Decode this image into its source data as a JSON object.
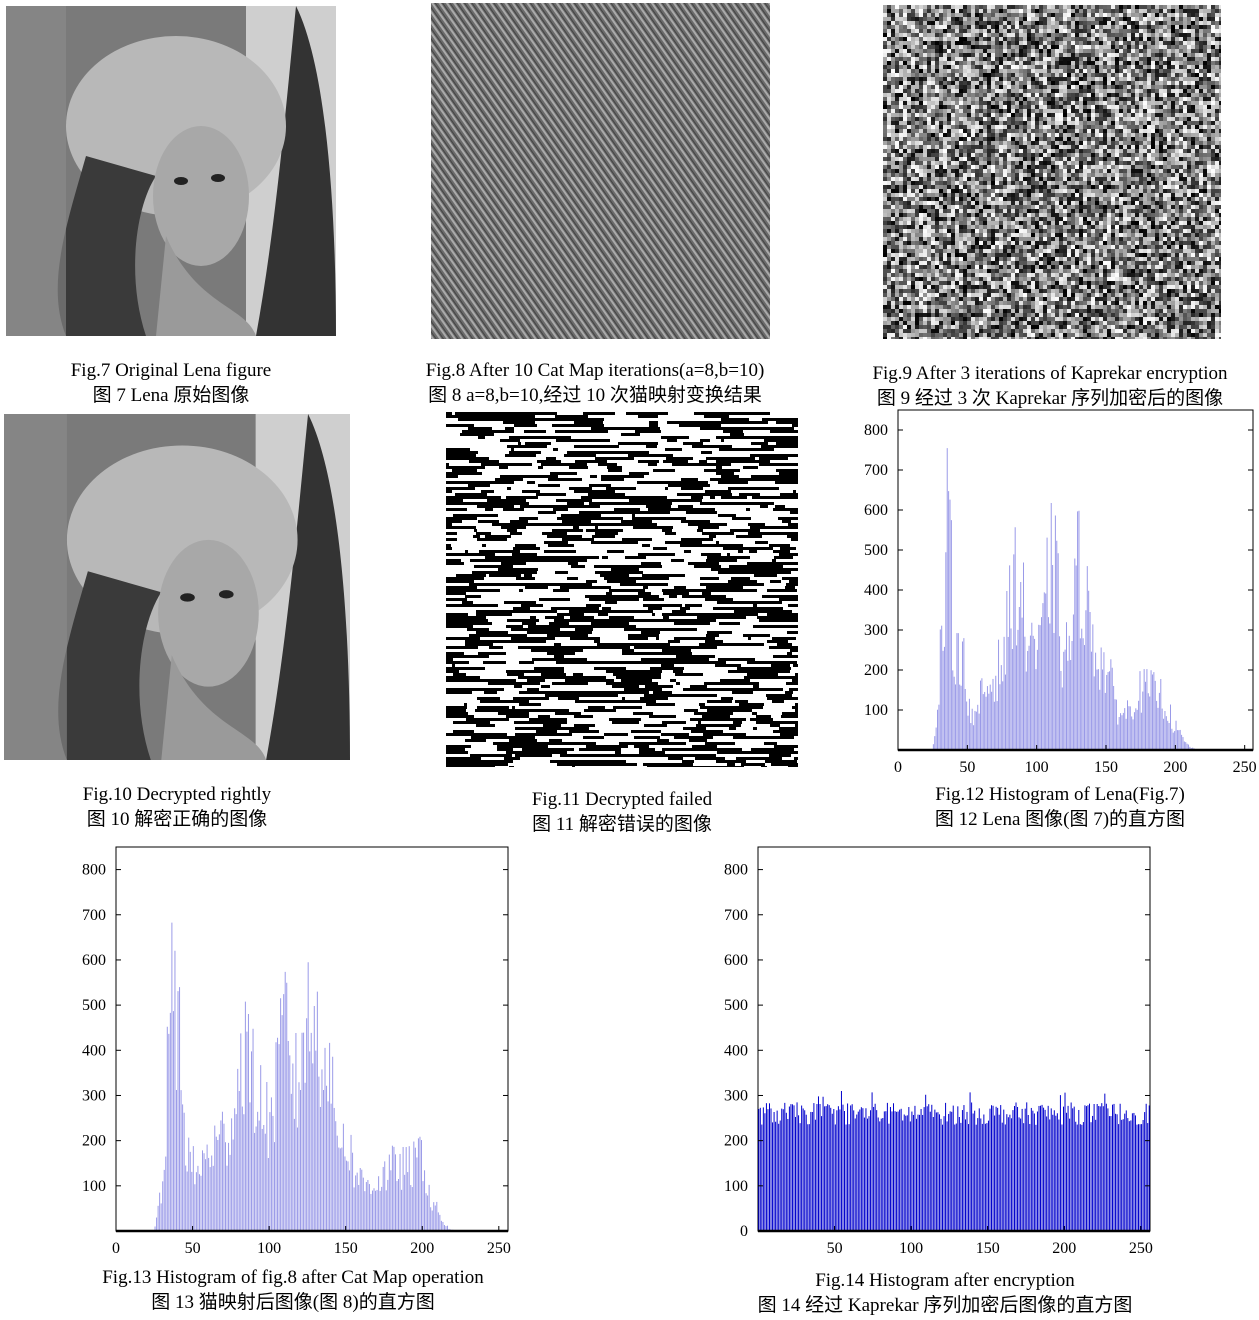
{
  "figures": {
    "fig7": {
      "caption_en": "Fig.7 Original Lena figure",
      "caption_zh": "图 7 Lena 原始图像"
    },
    "fig8": {
      "caption_en": "Fig.8 After 10 Cat Map iterations(a=8,b=10)",
      "caption_zh": "图 8 a=8,b=10,经过 10 次猫映射变换结果"
    },
    "fig9": {
      "caption_en": "Fig.9 After 3 iterations of Kaprekar encryption",
      "caption_zh": "图 9  经过 3 次 Kaprekar 序列加密后的图像"
    },
    "fig10": {
      "caption_en": "Fig.10 Decrypted rightly",
      "caption_zh": "图 10  解密正确的图像"
    },
    "fig11": {
      "caption_en": "Fig.11 Decrypted failed",
      "caption_zh": "图 11  解密错误的图像"
    },
    "fig12": {
      "caption_en": "Fig.12 Histogram of Lena(Fig.7)",
      "caption_zh": "图 12 Lena 图像(图 7)的直方图"
    },
    "fig13": {
      "caption_en": "Fig.13 Histogram of fig.8 after Cat Map operation",
      "caption_zh": "图 13  猫映射后图像(图 8)的直方图"
    },
    "fig14": {
      "caption_en": "Fig.14 Histogram after encryption",
      "caption_zh": "图 14  经过 Kaprekar 序列加密后图像的直方图"
    }
  },
  "chart_data": [
    {
      "id": "fig12",
      "type": "bar",
      "color": "#9a9ae8",
      "xlim": [
        0,
        256
      ],
      "ylim": [
        0,
        850
      ],
      "xticks": [
        0,
        50,
        100,
        150,
        200,
        250
      ],
      "yticks": [
        100,
        200,
        300,
        400,
        500,
        600,
        700,
        800
      ],
      "profile": [
        [
          0,
          0
        ],
        [
          24,
          0
        ],
        [
          26,
          40
        ],
        [
          28,
          120
        ],
        [
          30,
          320
        ],
        [
          32,
          330
        ],
        [
          34,
          700
        ],
        [
          35,
          760
        ],
        [
          37,
          740
        ],
        [
          39,
          420
        ],
        [
          41,
          330
        ],
        [
          43,
          380
        ],
        [
          46,
          320
        ],
        [
          48,
          260
        ],
        [
          52,
          120
        ],
        [
          56,
          100
        ],
        [
          60,
          200
        ],
        [
          64,
          210
        ],
        [
          68,
          240
        ],
        [
          72,
          280
        ],
        [
          76,
          320
        ],
        [
          80,
          480
        ],
        [
          82,
          560
        ],
        [
          84,
          580
        ],
        [
          86,
          560
        ],
        [
          88,
          540
        ],
        [
          90,
          470
        ],
        [
          92,
          360
        ],
        [
          96,
          420
        ],
        [
          100,
          300
        ],
        [
          104,
          400
        ],
        [
          108,
          580
        ],
        [
          110,
          640
        ],
        [
          112,
          620
        ],
        [
          114,
          560
        ],
        [
          118,
          320
        ],
        [
          122,
          340
        ],
        [
          126,
          430
        ],
        [
          128,
          600
        ],
        [
          130,
          620
        ],
        [
          132,
          600
        ],
        [
          134,
          540
        ],
        [
          138,
          420
        ],
        [
          142,
          360
        ],
        [
          146,
          300
        ],
        [
          150,
          280
        ],
        [
          154,
          210
        ],
        [
          158,
          140
        ],
        [
          162,
          120
        ],
        [
          166,
          140
        ],
        [
          170,
          180
        ],
        [
          174,
          200
        ],
        [
          178,
          210
        ],
        [
          182,
          200
        ],
        [
          186,
          200
        ],
        [
          190,
          180
        ],
        [
          194,
          140
        ],
        [
          198,
          90
        ],
        [
          202,
          60
        ],
        [
          206,
          30
        ],
        [
          210,
          10
        ],
        [
          214,
          4
        ],
        [
          218,
          0
        ],
        [
          256,
          0
        ]
      ]
    },
    {
      "id": "fig13",
      "type": "bar",
      "color": "#9a9ae8",
      "xlim": [
        0,
        256
      ],
      "ylim": [
        0,
        850
      ],
      "xticks": [
        0,
        50,
        100,
        150,
        200,
        250
      ],
      "yticks": [
        100,
        200,
        300,
        400,
        500,
        600,
        700,
        800
      ],
      "profile": [
        [
          0,
          0
        ],
        [
          24,
          0
        ],
        [
          26,
          30
        ],
        [
          28,
          120
        ],
        [
          30,
          130
        ],
        [
          32,
          330
        ],
        [
          34,
          600
        ],
        [
          35,
          650
        ],
        [
          37,
          740
        ],
        [
          39,
          620
        ],
        [
          41,
          600
        ],
        [
          43,
          380
        ],
        [
          46,
          260
        ],
        [
          48,
          200
        ],
        [
          52,
          180
        ],
        [
          56,
          200
        ],
        [
          60,
          240
        ],
        [
          64,
          260
        ],
        [
          68,
          280
        ],
        [
          72,
          300
        ],
        [
          76,
          360
        ],
        [
          80,
          470
        ],
        [
          82,
          560
        ],
        [
          84,
          580
        ],
        [
          86,
          520
        ],
        [
          88,
          460
        ],
        [
          92,
          420
        ],
        [
          96,
          360
        ],
        [
          100,
          330
        ],
        [
          104,
          420
        ],
        [
          108,
          580
        ],
        [
          110,
          640
        ],
        [
          112,
          600
        ],
        [
          114,
          520
        ],
        [
          118,
          420
        ],
        [
          122,
          620
        ],
        [
          126,
          630
        ],
        [
          130,
          610
        ],
        [
          134,
          580
        ],
        [
          138,
          560
        ],
        [
          142,
          330
        ],
        [
          146,
          300
        ],
        [
          150,
          280
        ],
        [
          154,
          210
        ],
        [
          158,
          160
        ],
        [
          162,
          140
        ],
        [
          166,
          150
        ],
        [
          170,
          150
        ],
        [
          174,
          170
        ],
        [
          178,
          180
        ],
        [
          182,
          200
        ],
        [
          186,
          190
        ],
        [
          190,
          190
        ],
        [
          194,
          200
        ],
        [
          198,
          230
        ],
        [
          200,
          240
        ],
        [
          202,
          160
        ],
        [
          206,
          80
        ],
        [
          210,
          60
        ],
        [
          214,
          20
        ],
        [
          218,
          5
        ],
        [
          222,
          0
        ],
        [
          256,
          0
        ]
      ]
    },
    {
      "id": "fig14",
      "type": "bar",
      "color": "#0000cc",
      "xlim": [
        0,
        256
      ],
      "ylim": [
        0,
        850
      ],
      "xticks": [
        50,
        100,
        150,
        200,
        250
      ],
      "yticks": [
        0,
        100,
        200,
        300,
        400,
        500,
        600,
        700,
        800
      ],
      "mean": 260,
      "spread": 25,
      "max": 310
    }
  ]
}
